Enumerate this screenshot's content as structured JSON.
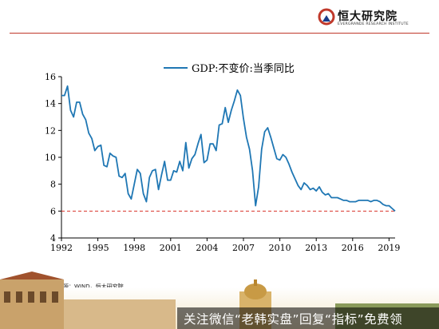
{
  "header": {
    "brand_name": "恒大研究院",
    "brand_sub": "EVERGRANDE RESEARCH INSTITUTE",
    "accent_color": "#c0392b"
  },
  "chart_data": {
    "type": "line",
    "legend": "GDP:不变价:当季同比",
    "legend_position": "top-center",
    "line_color": "#1f77b4",
    "reference_line": {
      "y": 6,
      "color": "#d9342b",
      "style": "dashed"
    },
    "ylim": [
      4,
      16
    ],
    "y_ticks": [
      "4",
      "6",
      "8",
      "10",
      "12",
      "14",
      "16"
    ],
    "xlim": [
      1992,
      2019.5
    ],
    "x_ticks": [
      "1992",
      "1995",
      "1998",
      "2001",
      "2004",
      "2007",
      "2010",
      "2013",
      "2016",
      "2019"
    ],
    "grid": false,
    "series": [
      {
        "x": [
          1992.0,
          1992.25,
          1992.5,
          1992.75,
          1993.0,
          1993.25,
          1993.5,
          1993.75,
          1994.0,
          1994.25,
          1994.5,
          1994.75,
          1995.0,
          1995.25,
          1995.5,
          1995.75,
          1996.0,
          1996.25,
          1996.5,
          1996.75,
          1997.0,
          1997.25,
          1997.5,
          1997.75,
          1998.0,
          1998.25,
          1998.5,
          1998.75,
          1999.0,
          1999.25,
          1999.5,
          1999.75,
          2000.0,
          2000.25,
          2000.5,
          2000.75,
          2001.0,
          2001.25,
          2001.5,
          2001.75,
          2002.0,
          2002.25,
          2002.5,
          2002.75,
          2003.0,
          2003.25,
          2003.5,
          2003.75,
          2004.0,
          2004.25,
          2004.5,
          2004.75,
          2005.0,
          2005.25,
          2005.5,
          2005.75,
          2006.0,
          2006.25,
          2006.5,
          2006.75,
          2007.0,
          2007.25,
          2007.5,
          2007.75,
          2008.0,
          2008.25,
          2008.5,
          2008.75,
          2009.0,
          2009.25,
          2009.5,
          2009.75,
          2010.0,
          2010.25,
          2010.5,
          2010.75,
          2011.0,
          2011.25,
          2011.5,
          2011.75,
          2012.0,
          2012.25,
          2012.5,
          2012.75,
          2013.0,
          2013.25,
          2013.5,
          2013.75,
          2014.0,
          2014.25,
          2014.5,
          2014.75,
          2015.0,
          2015.25,
          2015.5,
          2015.75,
          2016.0,
          2016.25,
          2016.5,
          2016.75,
          2017.0,
          2017.25,
          2017.5,
          2017.75,
          2018.0,
          2018.25,
          2018.5,
          2018.75,
          2019.0,
          2019.25,
          2019.5
        ],
        "y": [
          14.6,
          14.6,
          15.3,
          13.5,
          13.0,
          14.1,
          14.1,
          13.2,
          12.8,
          11.8,
          11.4,
          10.5,
          10.8,
          10.9,
          9.4,
          9.3,
          10.3,
          10.1,
          10.0,
          8.6,
          8.5,
          8.8,
          7.3,
          6.9,
          8.0,
          9.1,
          8.8,
          7.3,
          6.7,
          8.5,
          9.0,
          9.1,
          7.6,
          8.7,
          9.7,
          8.3,
          8.3,
          9.0,
          8.9,
          9.7,
          9.0,
          11.1,
          9.2,
          9.9,
          10.2,
          11.0,
          11.7,
          9.6,
          9.8,
          11.0,
          11.0,
          10.5,
          12.4,
          12.5,
          13.7,
          12.6,
          13.5,
          14.2,
          15.0,
          14.6,
          12.9,
          11.5,
          10.6,
          9.0,
          6.4,
          7.8,
          10.6,
          11.9,
          12.2,
          11.5,
          10.7,
          9.9,
          9.8,
          10.2,
          10.0,
          9.5,
          8.9,
          8.4,
          7.9,
          7.6,
          8.1,
          7.9,
          7.6,
          7.7,
          7.5,
          7.8,
          7.4,
          7.2,
          7.3,
          7.0,
          7.0,
          7.0,
          6.9,
          6.8,
          6.8,
          6.7,
          6.7,
          6.7,
          6.8,
          6.8,
          6.8,
          6.8,
          6.7,
          6.8,
          6.8,
          6.7,
          6.5,
          6.4,
          6.4,
          6.2,
          6.0
        ]
      }
    ]
  },
  "source": "资料来源：WIND，恒大研究院",
  "banner": {
    "text": "关注微信“老韩实盘”回复“指标”免费领"
  }
}
